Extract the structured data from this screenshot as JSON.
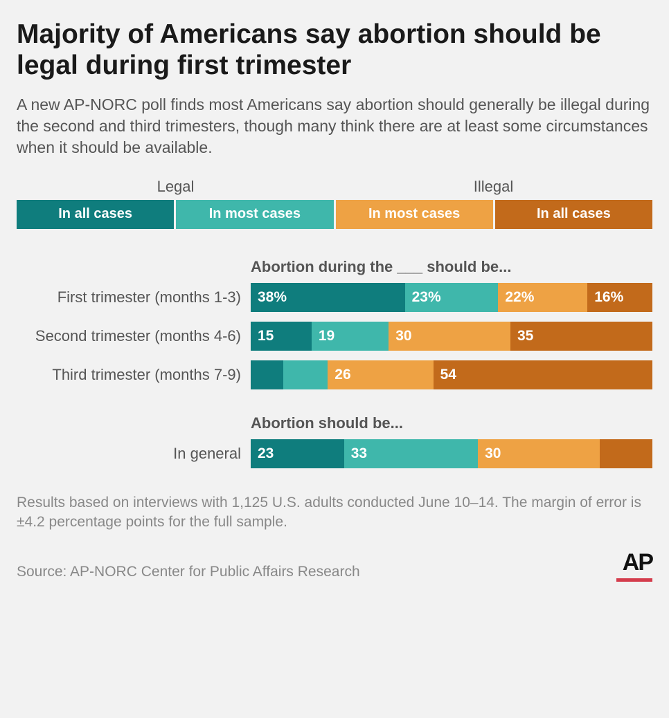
{
  "title": "Majority of Americans say abortion should be legal during first trimester",
  "subtitle": "A new AP-NORC poll finds most Americans say abortion should generally be illegal during the second and third trimesters, though many think there are at least some circumstances when it should be available.",
  "colors": {
    "legal_all": "#0f7d7d",
    "legal_most": "#3fb7ab",
    "illegal_most": "#eea244",
    "illegal_all": "#c26a1b"
  },
  "legend": {
    "headers": {
      "left": "Legal",
      "right": "Illegal"
    },
    "items": [
      {
        "label": "In all cases",
        "color_key": "legal_all"
      },
      {
        "label": "In most cases",
        "color_key": "legal_most"
      },
      {
        "label": "In most cases",
        "color_key": "illegal_most"
      },
      {
        "label": "In all cases",
        "color_key": "illegal_all"
      }
    ]
  },
  "chart1": {
    "title": "Abortion during the ___ should be...",
    "rows": [
      {
        "label": "First trimester (months 1-3)",
        "segs": [
          {
            "value": 38,
            "display": "38%",
            "color_key": "legal_all"
          },
          {
            "value": 23,
            "display": "23%",
            "color_key": "legal_most"
          },
          {
            "value": 22,
            "display": "22%",
            "color_key": "illegal_most"
          },
          {
            "value": 16,
            "display": "16%",
            "color_key": "illegal_all"
          }
        ]
      },
      {
        "label": "Second trimester (months 4-6)",
        "segs": [
          {
            "value": 15,
            "display": "15",
            "color_key": "legal_all"
          },
          {
            "value": 19,
            "display": "19",
            "color_key": "legal_most"
          },
          {
            "value": 30,
            "display": "30",
            "color_key": "illegal_most"
          },
          {
            "value": 35,
            "display": "35",
            "color_key": "illegal_all"
          }
        ]
      },
      {
        "label": "Third trimester (months 7-9)",
        "segs": [
          {
            "value": 8,
            "display": "",
            "color_key": "legal_all"
          },
          {
            "value": 11,
            "display": "",
            "color_key": "legal_most"
          },
          {
            "value": 26,
            "display": "26",
            "color_key": "illegal_most"
          },
          {
            "value": 54,
            "display": "54",
            "color_key": "illegal_all"
          }
        ]
      }
    ]
  },
  "chart2": {
    "title": "Abortion should be...",
    "rows": [
      {
        "label": "In general",
        "segs": [
          {
            "value": 23,
            "display": "23",
            "color_key": "legal_all"
          },
          {
            "value": 33,
            "display": "33",
            "color_key": "legal_most"
          },
          {
            "value": 30,
            "display": "30",
            "color_key": "illegal_most"
          },
          {
            "value": 13,
            "display": "",
            "color_key": "illegal_all"
          }
        ]
      }
    ]
  },
  "footnote": "Results based on interviews with 1,125 U.S. adults conducted June 10–14. The margin of error is ±4.2 percentage points for the full sample.",
  "source": "Source: AP-NORC Center for Public Affairs Research",
  "logo": "AP"
}
